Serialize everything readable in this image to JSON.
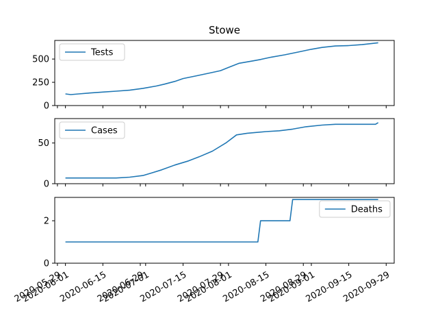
{
  "chart_data": {
    "type": "line",
    "title": "Stowe",
    "x_type": "date",
    "x_ticks": [
      "2020-05-29",
      "2020-06-01",
      "2020-06-15",
      "2020-06-29",
      "2020-07-01",
      "2020-07-15",
      "2020-07-29",
      "2020-08-01",
      "2020-08-15",
      "2020-08-29",
      "2020-09-01",
      "2020-09-15",
      "2020-09-29"
    ],
    "xlim": [
      "2020-05-28",
      "2020-10-02"
    ],
    "color": "#1f77b4",
    "panels": [
      {
        "series": [
          {
            "name": "Tests",
            "x": [
              "2020-06-01",
              "2020-06-03",
              "2020-06-06",
              "2020-06-10",
              "2020-06-15",
              "2020-06-20",
              "2020-06-25",
              "2020-06-30",
              "2020-07-05",
              "2020-07-08",
              "2020-07-12",
              "2020-07-15",
              "2020-07-20",
              "2020-07-25",
              "2020-07-29",
              "2020-08-01",
              "2020-08-05",
              "2020-08-10",
              "2020-08-13",
              "2020-08-17",
              "2020-08-22",
              "2020-08-27",
              "2020-09-01",
              "2020-09-05",
              "2020-09-10",
              "2020-09-15",
              "2020-09-20",
              "2020-09-26"
            ],
            "y": [
              125,
              118,
              125,
              135,
              145,
              155,
              165,
              185,
              210,
              230,
              260,
              290,
              320,
              350,
              375,
              410,
              455,
              480,
              495,
              520,
              545,
              575,
              605,
              625,
              640,
              645,
              655,
              675
            ]
          }
        ],
        "ylim": [
          0,
          700
        ],
        "yticks": [
          0,
          250,
          500
        ],
        "legend": "top-left"
      },
      {
        "series": [
          {
            "name": "Cases",
            "x": [
              "2020-06-01",
              "2020-06-20",
              "2020-06-25",
              "2020-06-30",
              "2020-07-03",
              "2020-07-07",
              "2020-07-12",
              "2020-07-17",
              "2020-07-21",
              "2020-07-26",
              "2020-07-31",
              "2020-08-04",
              "2020-08-08",
              "2020-08-15",
              "2020-08-20",
              "2020-08-25",
              "2020-08-30",
              "2020-09-05",
              "2020-09-10",
              "2020-09-25",
              "2020-09-26"
            ],
            "y": [
              7,
              7,
              8,
              10,
              13,
              17,
              23,
              28,
              33,
              40,
              50,
              60,
              62,
              64,
              65,
              67,
              70,
              72,
              73,
              73,
              75
            ]
          }
        ],
        "ylim": [
          0,
          80
        ],
        "yticks": [
          0,
          50
        ],
        "legend": "top-left"
      },
      {
        "series": [
          {
            "name": "Deaths",
            "x": [
              "2020-06-01",
              "2020-08-12",
              "2020-08-13",
              "2020-08-24",
              "2020-08-25",
              "2020-09-26"
            ],
            "y": [
              1,
              1,
              2,
              2,
              3,
              3
            ]
          }
        ],
        "ylim": [
          0,
          3.1
        ],
        "yticks": [
          0,
          2
        ],
        "legend": "top-right"
      }
    ]
  }
}
